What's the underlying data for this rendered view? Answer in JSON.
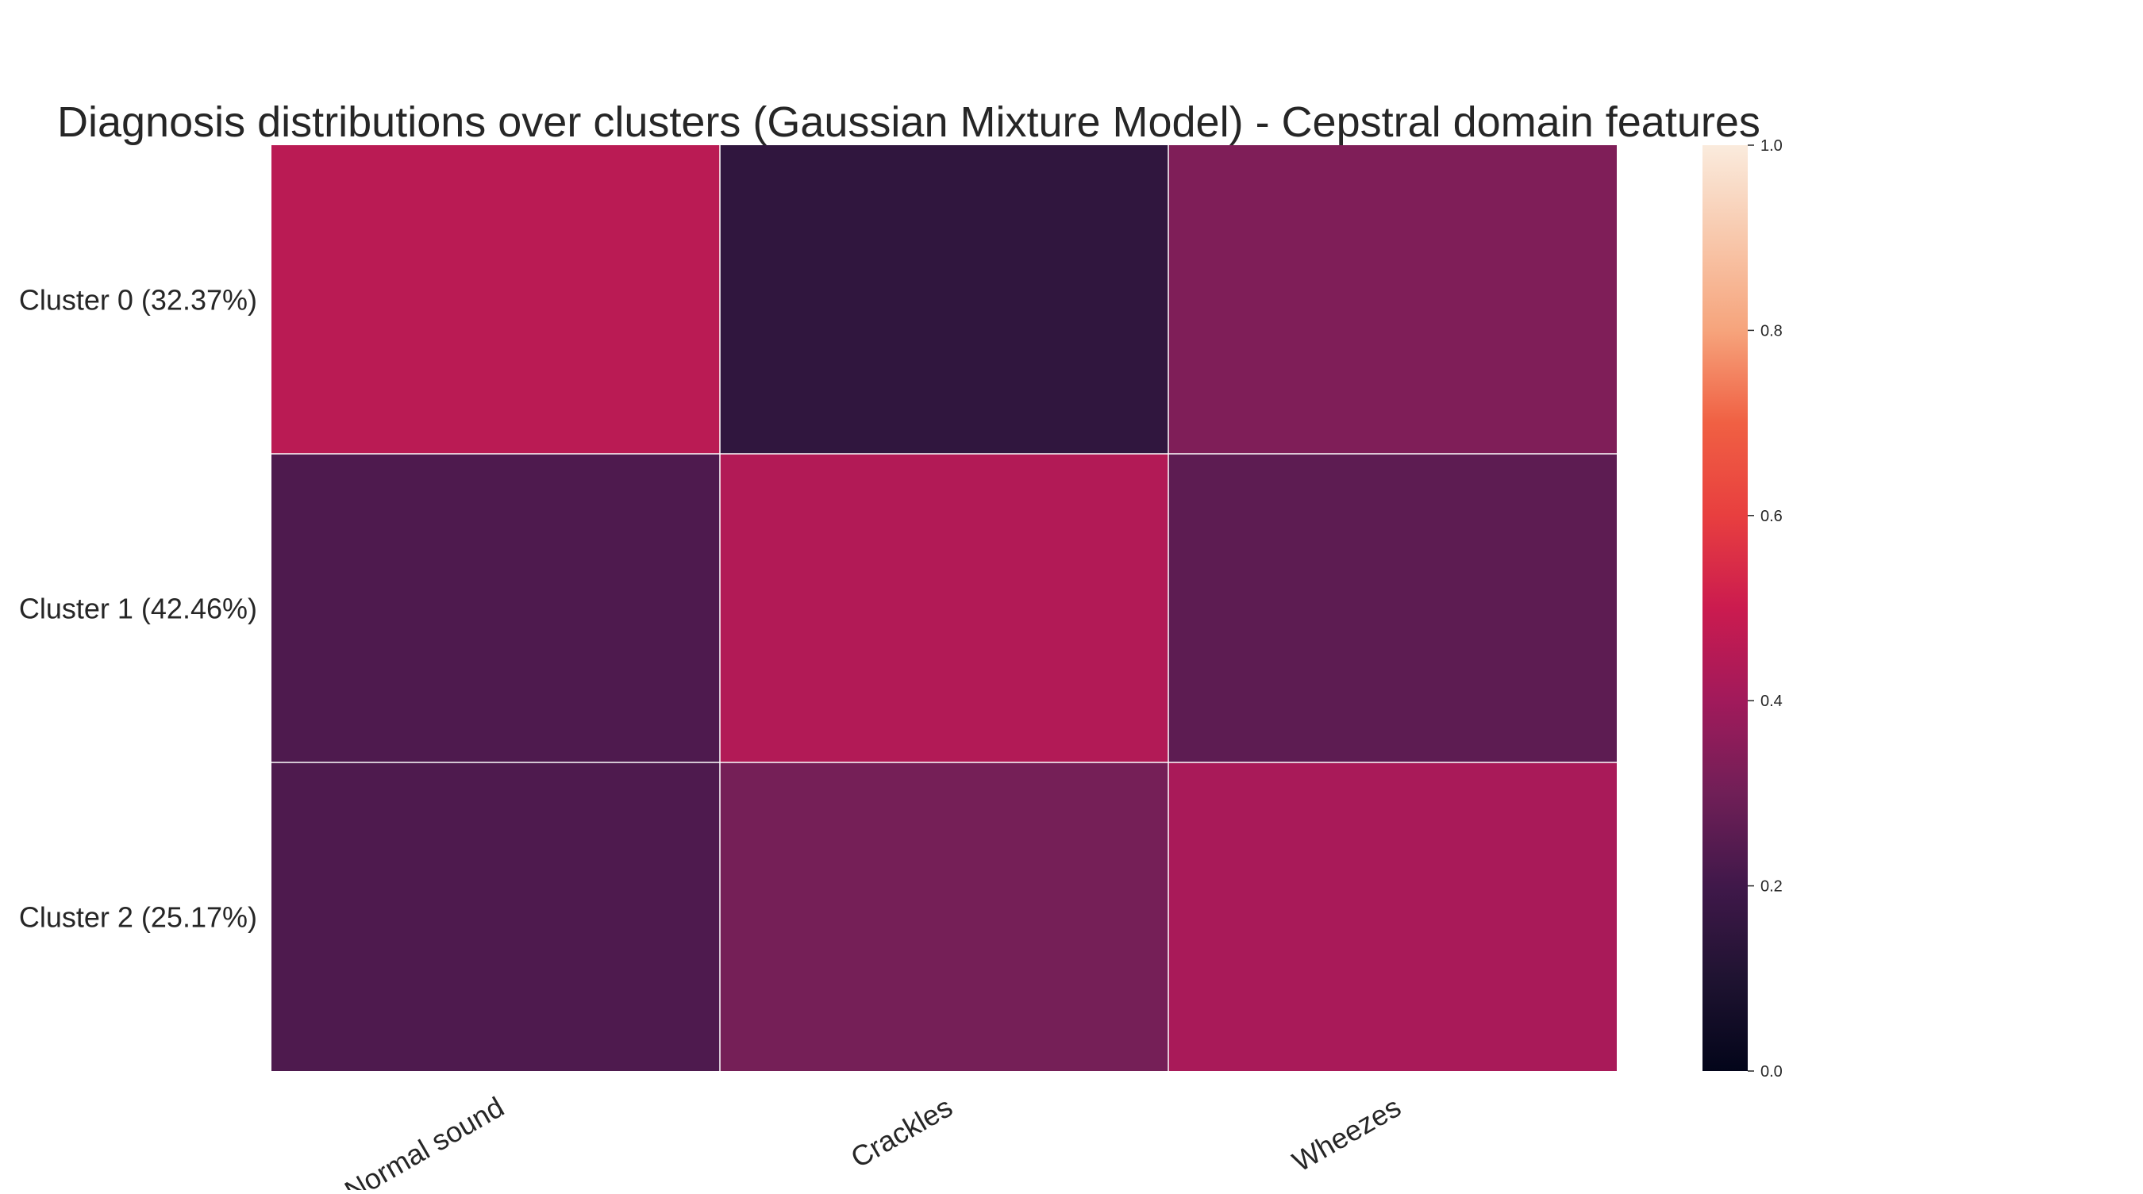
{
  "chart_data": {
    "type": "heatmap",
    "title": "Diagnosis distributions over clusters (Gaussian Mixture Model) - Cepstral domain features",
    "xlabel": "",
    "ylabel": "",
    "x_categories": [
      "Normal sound",
      "Crackles",
      "Wheezes"
    ],
    "y_categories": [
      "Cluster 0 (32.37%)",
      "Cluster 1 (42.46%)",
      "Cluster 2 (25.17%)"
    ],
    "values": [
      [
        0.46,
        0.15,
        0.33
      ],
      [
        0.23,
        0.44,
        0.26
      ],
      [
        0.23,
        0.31,
        0.42
      ]
    ],
    "colorbar": {
      "range": [
        0.0,
        1.0
      ],
      "ticks": [
        "0.0",
        "0.2",
        "0.4",
        "0.6",
        "0.8",
        "1.0"
      ],
      "colormap": "rocket"
    },
    "grid": false,
    "legend": "colorbar-right"
  }
}
